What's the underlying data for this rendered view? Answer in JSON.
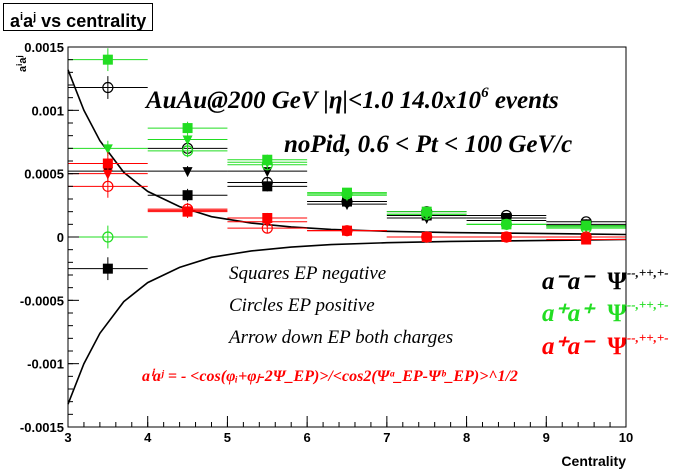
{
  "title": {
    "base": "a",
    "sup1": "i",
    "mid": "a",
    "sup2": "j",
    "rest": " vs centrality"
  },
  "ylabel": {
    "base": "a",
    "sup1": "i",
    "mid": "a",
    "sup2": "j"
  },
  "colors": {
    "black": "#000000",
    "green": "#22dd22",
    "red": "#ff0000",
    "frame": "#000000"
  },
  "chart_data": {
    "type": "scatter",
    "xlabel": "Centrality",
    "xlim": [
      3,
      10
    ],
    "ylim": [
      -0.0015,
      0.0015
    ],
    "x_ticks": [
      3,
      4,
      5,
      6,
      7,
      8,
      9,
      10
    ],
    "y_ticks": [
      -0.0015,
      -0.001,
      -0.0005,
      0,
      0.0005,
      0.001,
      0.0015
    ],
    "y_tick_labels": [
      "-0.0015",
      "-0.001",
      "-0.0005",
      "0",
      "0.0005",
      "0.001",
      "0.0015"
    ],
    "bin_half_width": 0.5,
    "x": [
      3.5,
      4.5,
      5.5,
      6.5,
      7.5,
      8.5,
      9.5
    ],
    "series": [
      {
        "name": "a⁻a⁻ EP negative",
        "marker": "square",
        "color": "black",
        "values": [
          -0.00025,
          0.00033,
          0.0004,
          0.00028,
          0.00017,
          0.00015,
          0.0001
        ],
        "err": [
          9e-05,
          5e-05,
          4e-05,
          3e-05,
          2e-05,
          2e-05,
          2e-05
        ]
      },
      {
        "name": "a⁻a⁻ EP positive",
        "marker": "circle",
        "color": "black",
        "values": [
          0.00118,
          0.0007,
          0.00043,
          0.00028,
          0.0002,
          0.00017,
          0.00012
        ],
        "err": [
          9e-05,
          5e-05,
          4e-05,
          3e-05,
          2e-05,
          2e-05,
          2e-05
        ]
      },
      {
        "name": "a⁻a⁻ EP both charges",
        "marker": "triangle-down",
        "color": "black",
        "values": [
          0.00052,
          0.00052,
          0.00052,
          0.00026,
          0.00015,
          0.00013,
          9e-05
        ],
        "err": [
          6e-05,
          4e-05,
          3e-05,
          2e-05,
          2e-05,
          1e-05,
          1e-05
        ]
      },
      {
        "name": "a⁺a⁺ EP negative",
        "marker": "square",
        "color": "green",
        "values": [
          0.0014,
          0.00086,
          0.00061,
          0.00035,
          0.0002,
          0.0001,
          9e-05
        ],
        "err": [
          9e-05,
          5e-05,
          4e-05,
          3e-05,
          2e-05,
          2e-05,
          2e-05
        ]
      },
      {
        "name": "a⁺a⁺ EP positive",
        "marker": "circle",
        "color": "green",
        "values": [
          0.0,
          0.00068,
          0.00057,
          0.00034,
          0.00018,
          0.0001,
          7e-05
        ],
        "err": [
          9e-05,
          5e-05,
          4e-05,
          3e-05,
          2e-05,
          2e-05,
          2e-05
        ]
      },
      {
        "name": "a⁺a⁺ EP both charges",
        "marker": "triangle-down",
        "color": "green",
        "values": [
          0.0007,
          0.00077,
          0.00059,
          0.00033,
          0.00018,
          0.0001,
          8e-05
        ],
        "err": [
          6e-05,
          4e-05,
          3e-05,
          2e-05,
          2e-05,
          1e-05,
          1e-05
        ]
      },
      {
        "name": "a⁺a⁻ EP negative",
        "marker": "square",
        "color": "red",
        "values": [
          0.00058,
          0.0002,
          0.00015,
          5e-05,
          0.0,
          0.0,
          -2e-05
        ],
        "err": [
          9e-05,
          5e-05,
          4e-05,
          3e-05,
          2e-05,
          2e-05,
          2e-05
        ]
      },
      {
        "name": "a⁺a⁻ EP positive",
        "marker": "circle",
        "color": "red",
        "values": [
          0.0004,
          0.00022,
          7e-05,
          5e-05,
          0.0,
          0.0,
          0.0
        ],
        "err": [
          9e-05,
          5e-05,
          4e-05,
          3e-05,
          2e-05,
          2e-05,
          2e-05
        ]
      },
      {
        "name": "a⁺a⁻ EP both charges",
        "marker": "triangle-down",
        "color": "red",
        "values": [
          0.0005,
          0.00021,
          0.00012,
          5e-05,
          0.0,
          0.0,
          0.0
        ],
        "err": [
          6e-05,
          4e-05,
          3e-05,
          2e-05,
          1e-05,
          1e-05,
          1e-05
        ]
      }
    ],
    "curves": [
      {
        "x": [
          3.0,
          3.2,
          3.4,
          3.7,
          4.0,
          4.4,
          4.8,
          5.3,
          5.8,
          6.3,
          7.0,
          7.8,
          8.6,
          9.3,
          10.0
        ],
        "values": [
          0.00132,
          0.001,
          0.00076,
          0.00051,
          0.00036,
          0.00024,
          0.00016,
          0.00011,
          8e-05,
          6e-05,
          4.5e-05,
          3.5e-05,
          3e-05,
          2.5e-05,
          2e-05
        ]
      },
      {
        "x": [
          3.0,
          3.2,
          3.4,
          3.7,
          4.0,
          4.4,
          4.8,
          5.3,
          5.8,
          6.3,
          7.0,
          7.8,
          8.6,
          9.3,
          10.0
        ],
        "values": [
          -0.00132,
          -0.001,
          -0.00076,
          -0.00051,
          -0.00036,
          -0.00024,
          -0.00016,
          -0.00011,
          -8e-05,
          -6e-05,
          -4.5e-05,
          -3.5e-05,
          -3e-05,
          -2.5e-05,
          -2e-05
        ]
      }
    ],
    "annotations": {
      "line1": "AuAu@200 GeV |η|<1.0 14.0x10",
      "line1_sup": "6",
      "line1_tail": " events",
      "line2": "noPid, 0.6 < Pt < 100 GeV/c",
      "legend_squares": "Squares EP negative",
      "legend_circles": "Circles EP positive",
      "legend_arrows": "Arrow down EP both charges",
      "formula": "aⁱaʲ = - <cos(φᵢ+φⱼ-2Ψ_EP)>/<cos2(Ψᵃ_EP-Ψᵇ_EP)>^1/2",
      "charge_legend": [
        {
          "label": "a⁻a⁻",
          "psi": "Ψ",
          "sup": "--,++,+-",
          "color": "black"
        },
        {
          "label": "a⁺a⁺",
          "psi": "Ψ",
          "sup": "--,++,+-",
          "color": "green"
        },
        {
          "label": "a⁺a⁻",
          "psi": "Ψ",
          "sup": "--,++,+-",
          "color": "red"
        }
      ]
    }
  }
}
